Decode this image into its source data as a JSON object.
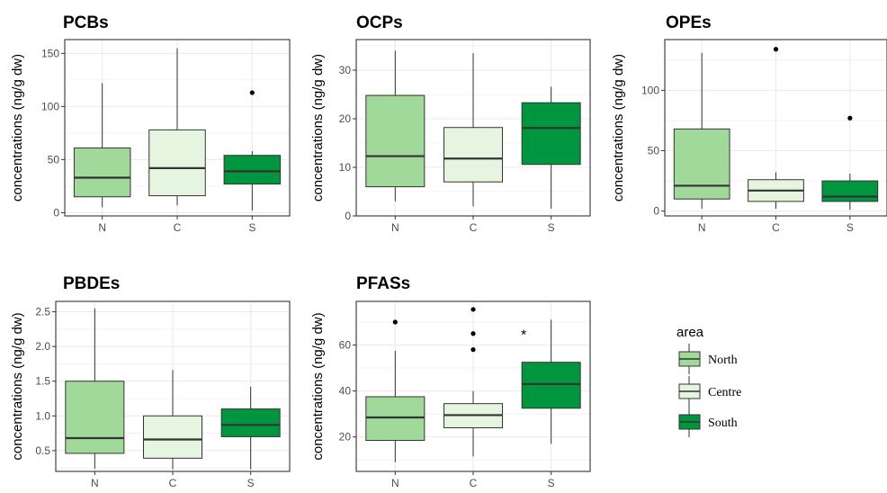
{
  "chart_data": [
    {
      "type": "box",
      "title": "PCBs",
      "ylabel": "concentrations (ng/g dw)",
      "ylim": [
        -3,
        163
      ],
      "yticks": [
        0,
        50,
        100,
        150
      ],
      "categories": [
        "N",
        "C",
        "S"
      ],
      "boxes": [
        {
          "min": 5,
          "q1": 15,
          "median": 33,
          "q3": 61,
          "max": 122,
          "outliers": []
        },
        {
          "min": 7,
          "q1": 16,
          "median": 42,
          "q3": 78,
          "max": 155,
          "outliers": []
        },
        {
          "min": 2,
          "q1": 27,
          "median": 39,
          "q3": 54,
          "max": 58,
          "outliers": [
            113
          ]
        }
      ],
      "annotations": []
    },
    {
      "type": "box",
      "title": "OCPs",
      "ylabel": "concentrations (ng/g dw)",
      "ylim": [
        0,
        36.3
      ],
      "yticks": [
        0,
        10,
        20,
        30
      ],
      "categories": [
        "N",
        "C",
        "S"
      ],
      "boxes": [
        {
          "min": 3,
          "q1": 6,
          "median": 12.3,
          "q3": 24.8,
          "max": 34,
          "outliers": []
        },
        {
          "min": 2,
          "q1": 7,
          "median": 11.8,
          "q3": 18.2,
          "max": 33.5,
          "outliers": []
        },
        {
          "min": 1.5,
          "q1": 10.6,
          "median": 18.1,
          "q3": 23.3,
          "max": 26.6,
          "outliers": []
        }
      ],
      "annotations": []
    },
    {
      "type": "box",
      "title": "OPEs",
      "ylabel": "concentrations (ng/g dw)",
      "ylim": [
        -4,
        142
      ],
      "yticks": [
        0,
        50,
        100
      ],
      "categories": [
        "N",
        "C",
        "S"
      ],
      "boxes": [
        {
          "min": 2,
          "q1": 10,
          "median": 21,
          "q3": 68,
          "max": 131,
          "outliers": []
        },
        {
          "min": 2,
          "q1": 8,
          "median": 17,
          "q3": 26,
          "max": 32,
          "outliers": [
            134
          ]
        },
        {
          "min": 1,
          "q1": 8,
          "median": 12,
          "q3": 25,
          "max": 31,
          "outliers": [
            77
          ]
        }
      ],
      "annotations": []
    },
    {
      "type": "box",
      "title": "PBDEs",
      "ylabel": "concentrations (ng/g dw)",
      "ylim": [
        0.2,
        2.65
      ],
      "yticks": [
        0.5,
        1.0,
        1.5,
        2.0,
        2.5
      ],
      "tick_labels": [
        "0.5",
        "1.0",
        "1.5",
        "2.0",
        "2.5"
      ],
      "categories": [
        "N",
        "C",
        "S"
      ],
      "boxes": [
        {
          "min": 0.24,
          "q1": 0.46,
          "median": 0.68,
          "q3": 1.5,
          "max": 2.55,
          "outliers": []
        },
        {
          "min": 0.23,
          "q1": 0.39,
          "median": 0.66,
          "q3": 1.0,
          "max": 1.66,
          "outliers": []
        },
        {
          "min": 0.23,
          "q1": 0.7,
          "median": 0.87,
          "q3": 1.1,
          "max": 1.42,
          "outliers": []
        }
      ],
      "annotations": []
    },
    {
      "type": "box",
      "title": "PFASs",
      "ylabel": "concentrations (ng/g dw)",
      "ylim": [
        5,
        79
      ],
      "yticks": [
        20,
        40,
        60
      ],
      "categories": [
        "N",
        "C",
        "S"
      ],
      "boxes": [
        {
          "min": 9,
          "q1": 18.5,
          "median": 28.5,
          "q3": 37.5,
          "max": 57.5,
          "outliers": [
            70
          ]
        },
        {
          "min": 11.5,
          "q1": 24,
          "median": 29.5,
          "q3": 34.5,
          "max": 40,
          "outliers": [
            75.5,
            65,
            58
          ]
        },
        {
          "min": 17,
          "q1": 32.5,
          "median": 43,
          "q3": 52.5,
          "max": 71,
          "outliers": []
        }
      ],
      "annotations": [
        {
          "category": "S",
          "text": "*"
        }
      ]
    }
  ],
  "legend": {
    "title": "area",
    "items": [
      {
        "label": "North",
        "color": "#a1d99b"
      },
      {
        "label": "Centre",
        "color": "#e5f5e0"
      },
      {
        "label": "South",
        "color": "#00953f"
      }
    ]
  },
  "colors": {
    "N": "#a1d99b",
    "C": "#e5f5e0",
    "S": "#00953f",
    "box_stroke": "#333333",
    "grid": "#ebebeb",
    "outlier": "#000000"
  }
}
